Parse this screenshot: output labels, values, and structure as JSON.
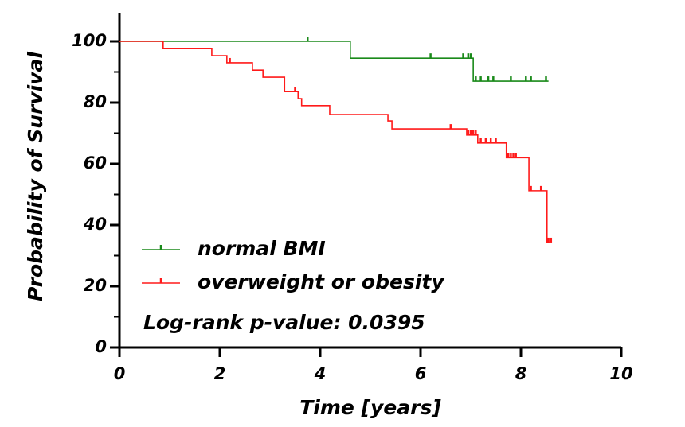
{
  "chart_data": {
    "type": "step",
    "x_label": "Time [years]",
    "y_label": "Probability of Survival",
    "annotation": "Log-rank p-value: 0.0395",
    "xlim": [
      0,
      10
    ],
    "xticks": [
      0,
      2,
      4,
      6,
      8,
      10
    ],
    "ylim": [
      0,
      100
    ],
    "yticks": [
      0,
      20,
      40,
      60,
      80,
      100
    ],
    "legend": "lower left",
    "series": [
      {
        "name": "normal BMI",
        "color": "#1a8a1a",
        "x": [
          0,
          4.6,
          7.05,
          8.55
        ],
        "values": [
          100,
          94.5,
          87,
          87
        ],
        "censored_x": [
          3.75,
          6.2,
          6.85,
          6.95,
          7.0,
          7.1,
          7.2,
          7.35,
          7.45,
          7.8,
          8.1,
          8.2,
          8.5
        ],
        "censored_values": [
          100,
          94.5,
          94.5,
          94.5,
          94.5,
          87,
          87,
          87,
          87,
          87,
          87,
          87,
          87
        ]
      },
      {
        "name": "overweight or obesity",
        "color": "#ff1a1a",
        "x": [
          0,
          0.87,
          1.84,
          2.14,
          2.65,
          2.86,
          3.29,
          3.56,
          3.63,
          4.19,
          5.35,
          5.43,
          6.92,
          7.14,
          7.71,
          8.16,
          8.52,
          8.57
        ],
        "values": [
          100,
          97.7,
          95.3,
          93,
          90.6,
          88.3,
          83.6,
          81.3,
          79,
          76.1,
          74,
          71.4,
          69.4,
          66.8,
          62,
          51.2,
          34.3,
          34.3
        ],
        "censored_x": [
          2.2,
          3.5,
          6.6,
          6.95,
          7.0,
          7.05,
          7.1,
          7.2,
          7.3,
          7.4,
          7.5,
          7.75,
          7.8,
          7.85,
          7.9,
          8.2,
          8.4,
          8.55,
          8.6
        ],
        "censored_values": [
          93,
          83.6,
          71.4,
          69.4,
          69.4,
          69.4,
          69.4,
          66.8,
          66.8,
          66.8,
          66.8,
          62,
          62,
          62,
          62,
          51.2,
          51.2,
          34.3,
          34.3
        ]
      }
    ]
  }
}
